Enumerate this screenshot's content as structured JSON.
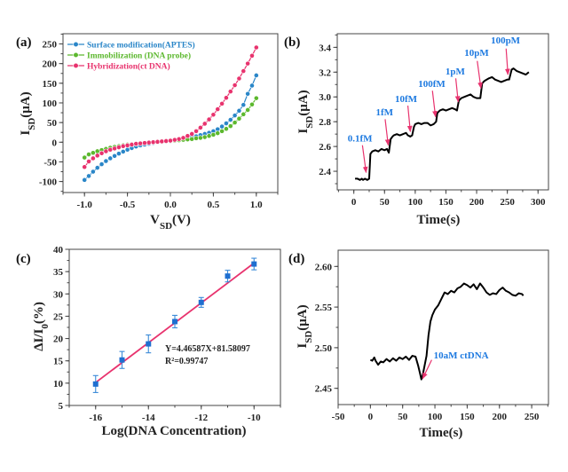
{
  "colors": {
    "aptes": "#2a86c8",
    "probe": "#5cb82e",
    "ctdna": "#e8336e",
    "trace": "#000000",
    "annotation_text": "#1e7ae0",
    "arrow": "#e8336e",
    "fit_line": "#e8336e",
    "marker_c": "#1f6fd0"
  },
  "chart_data": [
    {
      "panel_label": "(a)",
      "type": "line",
      "xlabel": {
        "main": "V",
        "sub": "SD",
        "rest": "(V)"
      },
      "ylabel": {
        "main": "I",
        "sub": "SD",
        "rest": "(μA)"
      },
      "xlim": [
        -1.25,
        1.25
      ],
      "ylim": [
        -128,
        276
      ],
      "xticks": [
        "-1.0",
        "-0.5",
        "0.0",
        "0.5",
        "1.0"
      ],
      "yticks": [
        "-100",
        "-50",
        "0",
        "50",
        "100",
        "150",
        "200",
        "250"
      ],
      "legend_position": "top-left",
      "x": [
        -1,
        -0.95,
        -0.9,
        -0.85,
        -0.8,
        -0.75,
        -0.7,
        -0.65,
        -0.6,
        -0.55,
        -0.5,
        -0.45,
        -0.4,
        -0.35,
        -0.3,
        -0.25,
        -0.2,
        -0.15,
        -0.1,
        -0.05,
        0,
        0.05,
        0.1,
        0.15,
        0.2,
        0.25,
        0.3,
        0.35,
        0.4,
        0.45,
        0.5,
        0.55,
        0.6,
        0.65,
        0.7,
        0.75,
        0.8,
        0.85,
        0.9,
        0.95,
        1
      ],
      "series": [
        {
          "name": "Surface modification(APTES)",
          "color_key": "aptes",
          "values": [
            -96,
            -86,
            -75,
            -65,
            -56,
            -48,
            -41,
            -35,
            -29,
            -24,
            -19,
            -15,
            -11,
            -8,
            -6,
            -4,
            -2,
            -1,
            0,
            1,
            2,
            4,
            6,
            8,
            10,
            13,
            15,
            18,
            21,
            24,
            28,
            33,
            40,
            48,
            57,
            68,
            80,
            95,
            123,
            144,
            170
          ]
        },
        {
          "name": "Immobilization (DNA probe)",
          "color_key": "probe",
          "values": [
            -39,
            -31,
            -27,
            -23,
            -20,
            -17,
            -14,
            -12,
            -10,
            -8,
            -6,
            -5,
            -4,
            -3,
            -2,
            -1,
            0,
            0,
            1,
            2,
            3,
            4,
            5,
            6,
            7,
            8,
            10,
            11,
            13,
            16,
            19,
            23,
            28,
            34,
            41,
            50,
            60,
            71,
            82,
            96,
            112
          ]
        },
        {
          "name": "Hybridization(ct DNA)",
          "color_key": "ctdna",
          "values": [
            -63,
            -49,
            -41,
            -34,
            -28,
            -23,
            -19,
            -16,
            -13,
            -10,
            -8,
            -6,
            -4,
            -3,
            -2,
            -1,
            0,
            1,
            2,
            3,
            4,
            6,
            8,
            11,
            16,
            21,
            28,
            37,
            47,
            58,
            70,
            84,
            98,
            113,
            129,
            145,
            162,
            181,
            200,
            220,
            241
          ]
        }
      ]
    },
    {
      "panel_label": "(b)",
      "type": "line",
      "xlabel": {
        "main": "Time(s)",
        "sub": "",
        "rest": ""
      },
      "ylabel": {
        "main": "I",
        "sub": "SD",
        "rest": "(μA)"
      },
      "xlim": [
        -27,
        317
      ],
      "ylim": [
        2.25,
        3.51
      ],
      "xticks": [
        "0",
        "50",
        "100",
        "150",
        "200",
        "250",
        "300"
      ],
      "yticks": [
        "2.4",
        "2.6",
        "2.8",
        "3.0",
        "3.2",
        "3.4"
      ],
      "x": [
        2,
        6,
        10,
        13,
        15,
        18,
        22,
        25,
        27,
        30,
        35,
        40,
        45,
        50,
        54,
        57,
        60,
        63,
        65,
        70,
        75,
        80,
        85,
        88,
        92,
        95,
        98,
        100,
        105,
        110,
        115,
        120,
        125,
        130,
        134,
        136,
        140,
        145,
        150,
        155,
        160,
        165,
        168,
        171,
        175,
        180,
        185,
        190,
        195,
        200,
        206,
        209,
        213,
        220,
        225,
        230,
        235,
        240,
        245,
        250,
        253,
        257,
        260,
        265,
        270,
        275,
        280,
        285
      ],
      "values": [
        2.34,
        2.34,
        2.33,
        2.34,
        2.33,
        2.34,
        2.33,
        2.34,
        2.54,
        2.56,
        2.57,
        2.56,
        2.58,
        2.57,
        2.58,
        2.55,
        2.66,
        2.68,
        2.69,
        2.7,
        2.69,
        2.7,
        2.71,
        2.69,
        2.68,
        2.69,
        2.76,
        2.78,
        2.79,
        2.78,
        2.79,
        2.79,
        2.77,
        2.78,
        2.8,
        2.87,
        2.89,
        2.9,
        2.89,
        2.9,
        2.91,
        2.9,
        2.89,
        2.97,
        2.99,
        3.0,
        3.01,
        3.02,
        3.0,
        2.99,
        2.99,
        3.11,
        3.13,
        3.15,
        3.16,
        3.14,
        3.13,
        3.12,
        3.13,
        3.14,
        3.14,
        3.22,
        3.23,
        3.21,
        3.2,
        3.19,
        3.18,
        3.2
      ],
      "annotations": [
        {
          "text": "0.1fM",
          "text_at": [
            10,
            2.64
          ],
          "arrow_from": [
            14,
            2.61
          ],
          "arrow_to": [
            20,
            2.39
          ]
        },
        {
          "text": "1fM",
          "text_at": [
            50,
            2.85
          ],
          "arrow_from": [
            51,
            2.82
          ],
          "arrow_to": [
            56,
            2.61
          ]
        },
        {
          "text": "10fM",
          "text_at": [
            85,
            2.96
          ],
          "arrow_from": [
            88,
            2.93
          ],
          "arrow_to": [
            92,
            2.72
          ]
        },
        {
          "text": "100fM",
          "text_at": [
            127,
            3.08
          ],
          "arrow_from": [
            128,
            3.05
          ],
          "arrow_to": [
            133,
            2.84
          ]
        },
        {
          "text": "1pM",
          "text_at": [
            165,
            3.18
          ],
          "arrow_from": [
            166,
            3.15
          ],
          "arrow_to": [
            170,
            2.96
          ]
        },
        {
          "text": "10pM",
          "text_at": [
            200,
            3.33
          ],
          "arrow_from": [
            201,
            3.29
          ],
          "arrow_to": [
            207,
            3.07
          ]
        },
        {
          "text": "100pM",
          "text_at": [
            247,
            3.43
          ],
          "arrow_from": [
            248,
            3.39
          ],
          "arrow_to": [
            251,
            3.18
          ]
        }
      ]
    },
    {
      "panel_label": "(c)",
      "type": "scatter",
      "xlabel": {
        "main": "Log(DNA Concentration)",
        "sub": "",
        "rest": ""
      },
      "ylabel": {
        "main": "ΔI/I",
        "sub": "0",
        "rest": "(%)"
      },
      "xlim": [
        -17,
        -9
      ],
      "ylim": [
        5,
        40
      ],
      "xticks": [
        "-16",
        "-14",
        "-12",
        "-10"
      ],
      "yticks": [
        "5",
        "10",
        "15",
        "20",
        "25",
        "30",
        "35",
        "40"
      ],
      "x": [
        -16,
        -15,
        -14,
        -13,
        -12,
        -11,
        -10
      ],
      "values": [
        9.8,
        15.2,
        18.8,
        23.8,
        28.1,
        34.0,
        36.7
      ],
      "errors": [
        1.9,
        1.9,
        2.0,
        1.4,
        1.1,
        1.3,
        1.3
      ],
      "fit": {
        "slope": 4.46587,
        "intercept": 81.58097,
        "x_range": [
          -16,
          -10
        ]
      },
      "equation": "Y=4.46587X+81.58097",
      "r2": {
        "main": "R",
        "sup": "2",
        "rest": "=0.99747"
      }
    },
    {
      "panel_label": "(d)",
      "type": "line",
      "xlabel": {
        "main": "Time(s)",
        "sub": "",
        "rest": ""
      },
      "ylabel": {
        "main": "I",
        "sub": "SD",
        "rest": "(μA)"
      },
      "xlim": [
        -50,
        276
      ],
      "ylim": [
        2.43,
        2.62
      ],
      "xticks": [
        "-50",
        "0",
        "50",
        "100",
        "150",
        "200",
        "250"
      ],
      "yticks": [
        "2.45",
        "2.50",
        "2.55",
        "2.60"
      ],
      "x": [
        0,
        3,
        6,
        8,
        12,
        16,
        20,
        25,
        30,
        35,
        40,
        45,
        50,
        55,
        60,
        65,
        70,
        74,
        77,
        79,
        81,
        84,
        87,
        90,
        93,
        96,
        100,
        105,
        110,
        115,
        120,
        125,
        130,
        135,
        140,
        145,
        150,
        155,
        160,
        165,
        170,
        175,
        180,
        185,
        190,
        195,
        200,
        205,
        210,
        215,
        220,
        225,
        230,
        235,
        237
      ],
      "values": [
        2.485,
        2.484,
        2.488,
        2.484,
        2.479,
        2.483,
        2.482,
        2.486,
        2.483,
        2.487,
        2.484,
        2.488,
        2.486,
        2.489,
        2.485,
        2.49,
        2.489,
        2.478,
        2.468,
        2.461,
        2.466,
        2.478,
        2.49,
        2.515,
        2.532,
        2.54,
        2.547,
        2.552,
        2.56,
        2.568,
        2.566,
        2.57,
        2.568,
        2.573,
        2.575,
        2.579,
        2.577,
        2.574,
        2.578,
        2.572,
        2.579,
        2.574,
        2.568,
        2.565,
        2.567,
        2.566,
        2.571,
        2.574,
        2.57,
        2.568,
        2.565,
        2.564,
        2.567,
        2.566,
        2.564
      ],
      "annotations": [
        {
          "text": "10aM ctDNA",
          "text_at": [
            98,
            2.487
          ],
          "arrow_from": [
            95,
            2.485
          ],
          "arrow_to": [
            81,
            2.462
          ]
        }
      ]
    }
  ]
}
